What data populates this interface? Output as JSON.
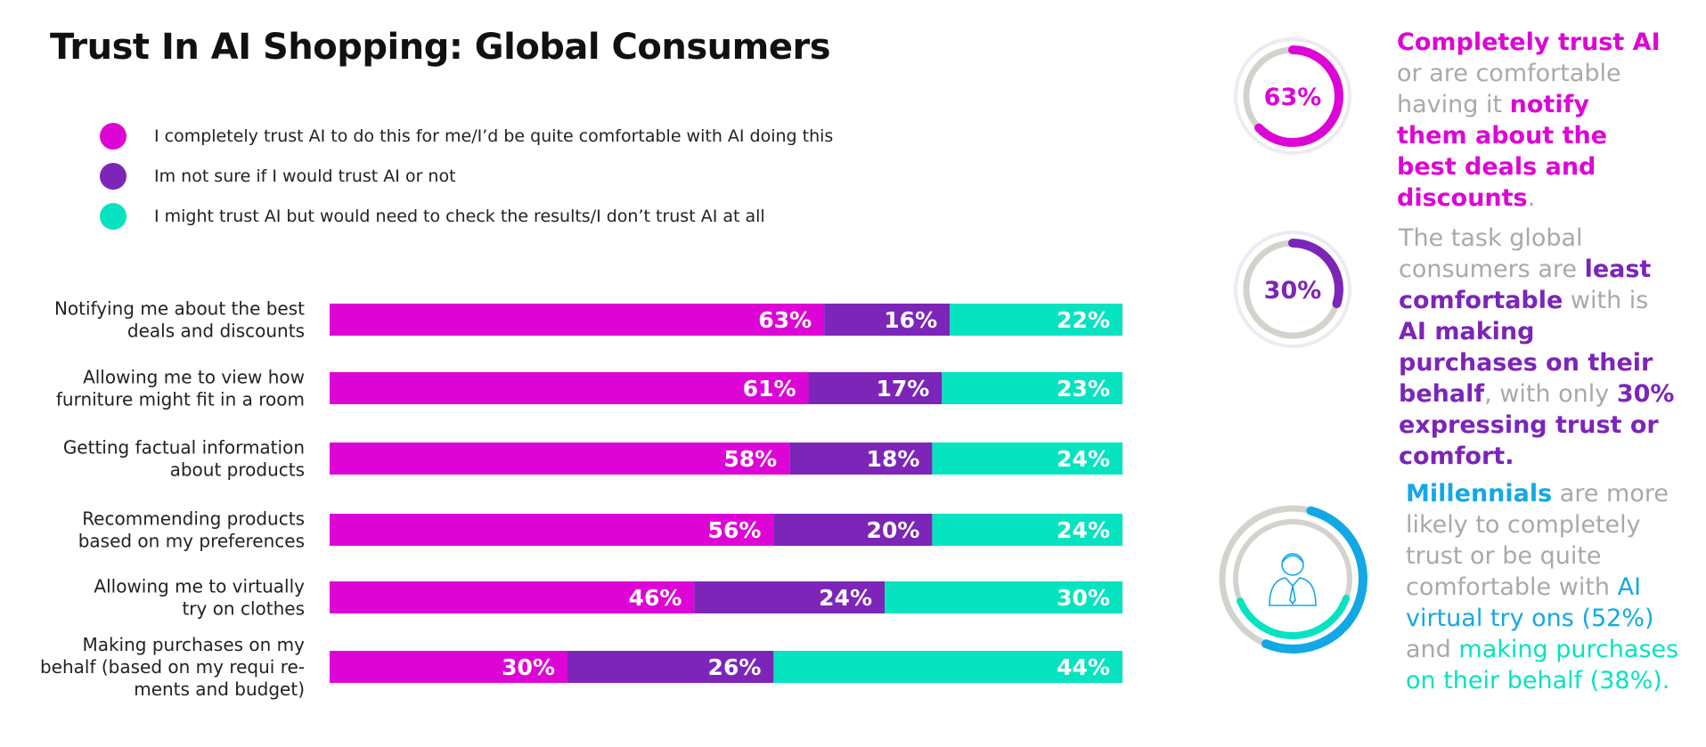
{
  "title": "Trust In AI Shopping: Global Consumers",
  "colors": {
    "trust": "#dd05d6",
    "unsure": "#7c25b8",
    "check": "#05e3c0",
    "gray_text": "#a9a9a9",
    "blue": "#12a8e6",
    "ring_gray": "#d3d2cc"
  },
  "legend": [
    {
      "label": "I completely trust AI to do this for me/I’d be quite comfortable with AI doing this",
      "color": "#dd05d6"
    },
    {
      "label": "Im not sure if I would trust AI or not",
      "color": "#7c25b8"
    },
    {
      "label": "I might trust AI but would need to check the results/I don’t trust AI at all",
      "color": "#05e3c0"
    }
  ],
  "chart_data": {
    "type": "bar",
    "orientation": "horizontal",
    "stacked": true,
    "title": "Trust In AI Shopping: Global Consumers",
    "categories": [
      [
        "Notifying me about the best",
        "deals and discounts"
      ],
      [
        "Allowing me to view how",
        "furniture might fit in a room"
      ],
      [
        "Getting factual information",
        "about products"
      ],
      [
        "Recommending products",
        "based on my preferences"
      ],
      [
        "Allowing me to virtually",
        "try on clothes"
      ],
      [
        "Making purchases on my",
        "behalf (based on my requi re-",
        "ments and budget)"
      ]
    ],
    "series": [
      {
        "name": "I completely trust AI to do this for me/I’d be quite comfortable with AI doing this",
        "color": "#dd05d6",
        "values": [
          63,
          61,
          58,
          56,
          46,
          30
        ]
      },
      {
        "name": "Im not sure if I would trust AI or not",
        "color": "#7c25b8",
        "values": [
          16,
          17,
          18,
          20,
          24,
          26
        ]
      },
      {
        "name": "I might trust AI but would need to check the results/I don’t trust AI at all",
        "color": "#05e3c0",
        "values": [
          22,
          23,
          24,
          24,
          30,
          44
        ]
      }
    ],
    "value_suffix": "%",
    "legend_position": "top-left",
    "grid": false
  },
  "callouts": {
    "c1": {
      "donut_value": 63,
      "donut_label": "63%",
      "p1": "Completely trust AI",
      "p2": " or are comfortable having it ",
      "p3": "notify them about the best deals and discounts",
      "p4": "."
    },
    "c2": {
      "donut_value": 30,
      "donut_label": "30%",
      "p1": "The task global consumers are ",
      "p2": "least comfortable",
      "p3": " with is ",
      "p4": "AI making purchases on their behalf",
      "p5": ", with only ",
      "p6": "30% expressing trust or comfort."
    },
    "c3": {
      "outer_value": 52,
      "inner_value": 38,
      "icon": "person-icon",
      "p1": "Millennials",
      "p2": " are more likely to completely trust or be quite comfortable with ",
      "p3": "AI virtual try ons (52%)",
      "p4": " and ",
      "p5": "making purchases on their behalf (38%)",
      "p6": "."
    }
  }
}
